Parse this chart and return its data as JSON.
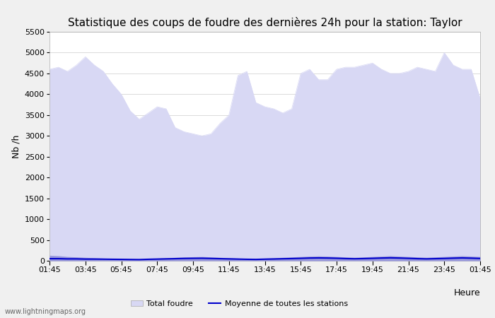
{
  "title": "Statistique des coups de foudre des dernières 24h pour la station: Taylor",
  "xlabel": "Heure",
  "ylabel": "Nb /h",
  "ylim": [
    0,
    5500
  ],
  "yticks": [
    0,
    500,
    1000,
    1500,
    2000,
    2500,
    3000,
    3500,
    4000,
    4500,
    5000,
    5500
  ],
  "x_labels": [
    "01:45",
    "03:45",
    "05:45",
    "07:45",
    "09:45",
    "11:45",
    "13:45",
    "15:45",
    "17:45",
    "19:45",
    "21:45",
    "23:45",
    "01:45"
  ],
  "background_color": "#f0f0f0",
  "plot_bg_color": "#ffffff",
  "grid_color": "#cccccc",
  "fill_total_color": "#d8d8f4",
  "fill_station_color": "#9999dd",
  "line_mean_color": "#0000cc",
  "watermark": "www.lightningmaps.org",
  "total_foudre": [
    4600,
    4650,
    4550,
    4700,
    4900,
    4700,
    4550,
    4250,
    4000,
    3600,
    3400,
    3550,
    3700,
    3650,
    3200,
    3100,
    3050,
    3000,
    3050,
    3300,
    3500,
    4450,
    4550,
    3800,
    3700,
    3650,
    3550,
    3650,
    4500,
    4600,
    4350,
    4350,
    4600,
    4650,
    4650,
    4700,
    4750,
    4600,
    4500,
    4500,
    4550,
    4650,
    4600,
    4550,
    5000,
    4700,
    4600,
    4600,
    3900
  ],
  "station_foudre": [
    130,
    120,
    100,
    90,
    80,
    70,
    60,
    55,
    50,
    45,
    40,
    50,
    60,
    70,
    80,
    90,
    95,
    100,
    90,
    80,
    70,
    60,
    55,
    50,
    60,
    70,
    80,
    90,
    100,
    110,
    115,
    110,
    100,
    90,
    80,
    90,
    100,
    110,
    120,
    110,
    100,
    90,
    80,
    90,
    100,
    110,
    120,
    110,
    100
  ],
  "mean_line": [
    50,
    50,
    45,
    45,
    40,
    40,
    38,
    35,
    33,
    30,
    28,
    35,
    40,
    45,
    50,
    55,
    58,
    60,
    55,
    50,
    45,
    40,
    35,
    32,
    38,
    42,
    48,
    52,
    58,
    65,
    68,
    65,
    60,
    52,
    48,
    52,
    58,
    65,
    70,
    65,
    58,
    50,
    45,
    50,
    55,
    62,
    68,
    62,
    55
  ]
}
